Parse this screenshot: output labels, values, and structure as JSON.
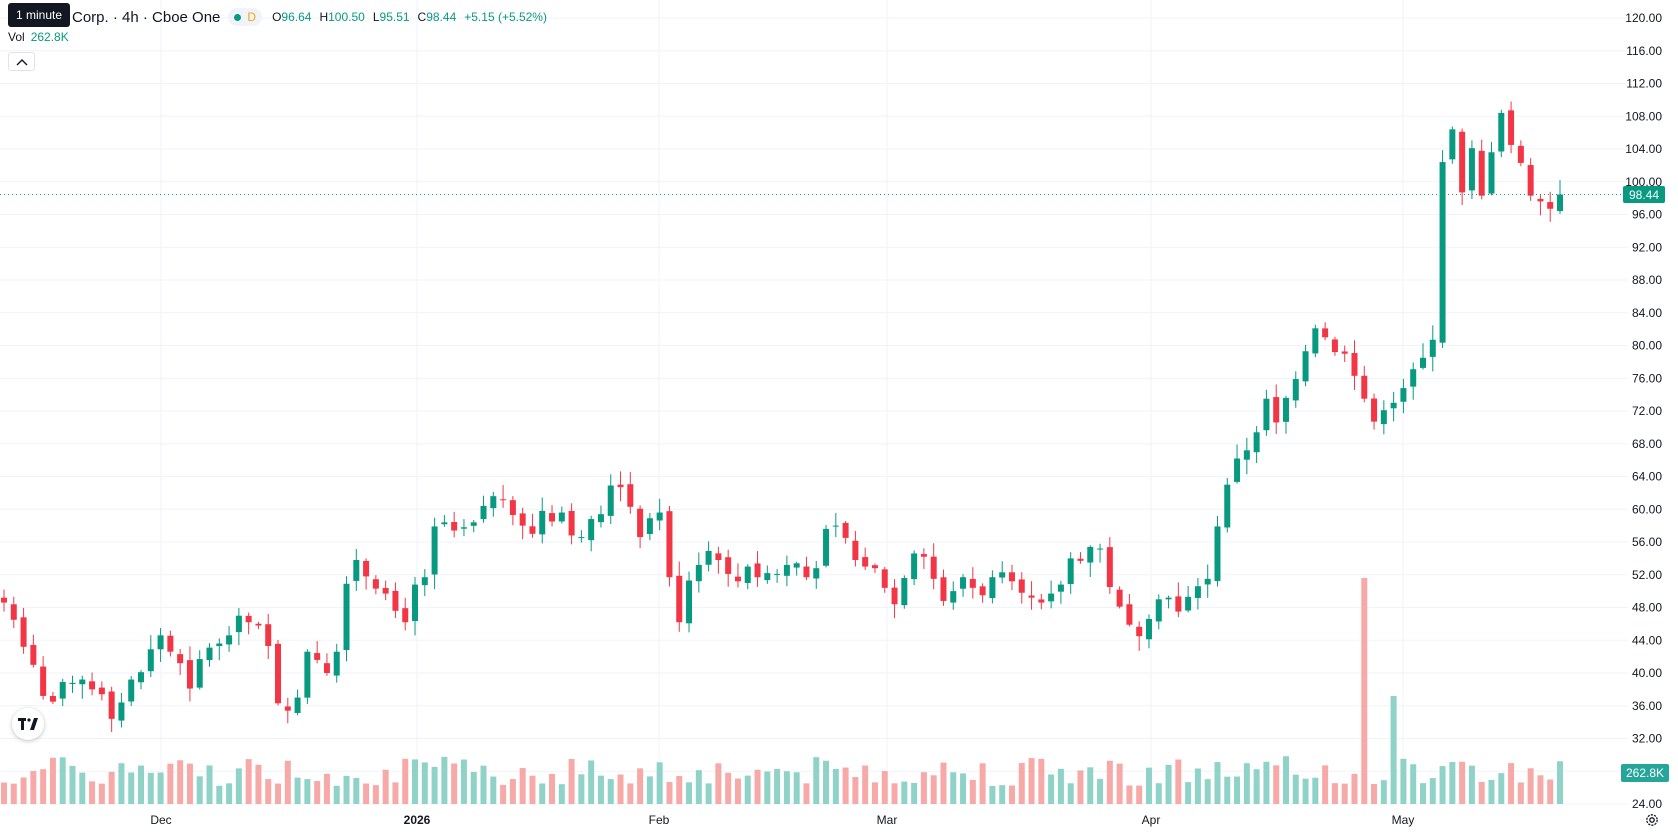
{
  "legend": {
    "title": "Corp. · 4h · Cboe One",
    "badge_letter": "D",
    "open_label": "O",
    "open_value": "96.64",
    "high_label": "H",
    "high_value": "100.50",
    "low_label": "L",
    "low_value": "95.51",
    "close_label": "C",
    "close_value": "98.44",
    "change": "+5.15 (+5.52%)"
  },
  "tooltip": "1 minute",
  "volume": {
    "label": "Vol",
    "value": "262.8K",
    "axis_badge": "262.8K"
  },
  "price_badge": "98.44",
  "colors": {
    "up": "#089981",
    "down": "#f23645",
    "vol_up": "#8fd3c8",
    "vol_down": "#f7a9a7",
    "grid": "#f0f3fa"
  },
  "icons": {
    "collapse": "chevron-up-icon",
    "logo": "tradingview-logo-icon",
    "settings": "gear-icon"
  },
  "chart_data": {
    "type": "candlestick",
    "timeframe": "4h",
    "x_tick_labels": [
      "Dec",
      "2026",
      "Feb",
      "Mar",
      "Apr",
      "May"
    ],
    "y_tick_labels": [
      "24.00",
      "28.00",
      "32.00",
      "36.00",
      "40.00",
      "44.00",
      "48.00",
      "52.00",
      "56.00",
      "60.00",
      "64.00",
      "68.00",
      "72.00",
      "76.00",
      "80.00",
      "84.00",
      "88.00",
      "92.00",
      "96.00",
      "100.00",
      "104.00",
      "108.00",
      "112.00",
      "116.00",
      "120.00"
    ],
    "ylim": [
      23,
      121
    ],
    "last_price": 98.44,
    "closes": [
      48.6,
      46.5,
      43.2,
      41.0,
      37.2,
      36.5,
      38.9,
      38.8,
      39.2,
      38.0,
      37.4,
      34.4,
      36.4,
      39.2,
      40.1,
      42.9,
      44.6,
      42.6,
      41.2,
      38.1,
      41.7,
      43.1,
      43.6,
      44.6,
      47.0,
      46.2,
      45.8,
      43.3,
      36.3,
      35.4,
      37.0,
      42.6,
      41.6,
      40.0,
      42.6,
      50.9,
      53.8,
      51.8,
      50.3,
      49.7,
      47.6,
      46.2,
      50.8,
      51.7,
      57.9,
      58.4,
      57.4,
      57.8,
      58.4,
      60.4,
      61.6,
      61.2,
      59.3,
      58.0,
      57.0,
      59.8,
      58.5,
      59.6,
      56.8,
      56.6,
      58.8,
      59.4,
      62.9,
      62.7,
      60.3,
      56.6,
      58.9,
      59.6,
      51.7,
      46.2,
      51.3,
      53.2,
      54.9,
      53.8,
      52.1,
      51.2,
      53.0,
      51.7,
      52.2,
      52.1,
      53.2,
      53.4,
      51.7,
      52.8,
      57.6,
      58.0,
      56.5,
      53.8,
      53.0,
      52.8,
      50.4,
      48.4,
      51.6,
      54.6,
      54.2,
      51.5,
      48.8,
      50.0,
      51.7,
      50.4,
      49.5,
      51.7,
      52.3,
      51.2,
      49.8,
      49.2,
      48.6,
      49.7,
      50.8,
      54.0,
      53.7,
      55.4,
      55.2,
      50.5,
      48.1,
      45.9,
      44.5,
      46.6,
      49.0,
      49.2,
      47.5,
      49.3,
      50.6,
      51.5,
      57.9,
      63.0,
      66.2,
      67.2,
      69.4,
      73.5,
      70.6,
      73.6,
      75.9,
      79.3,
      82.1,
      81.0,
      79.2,
      79.0,
      76.3,
      73.5,
      70.7,
      72.1,
      73.0,
      74.8,
      77.1,
      78.5,
      80.7,
      102.4,
      106.4,
      98.7,
      104.1,
      98.3,
      103.6,
      108.4,
      104.5,
      102.3,
      98.3,
      97.6,
      96.7,
      98.44
    ],
    "volume_note": "relative bar heights in volume pane"
  }
}
